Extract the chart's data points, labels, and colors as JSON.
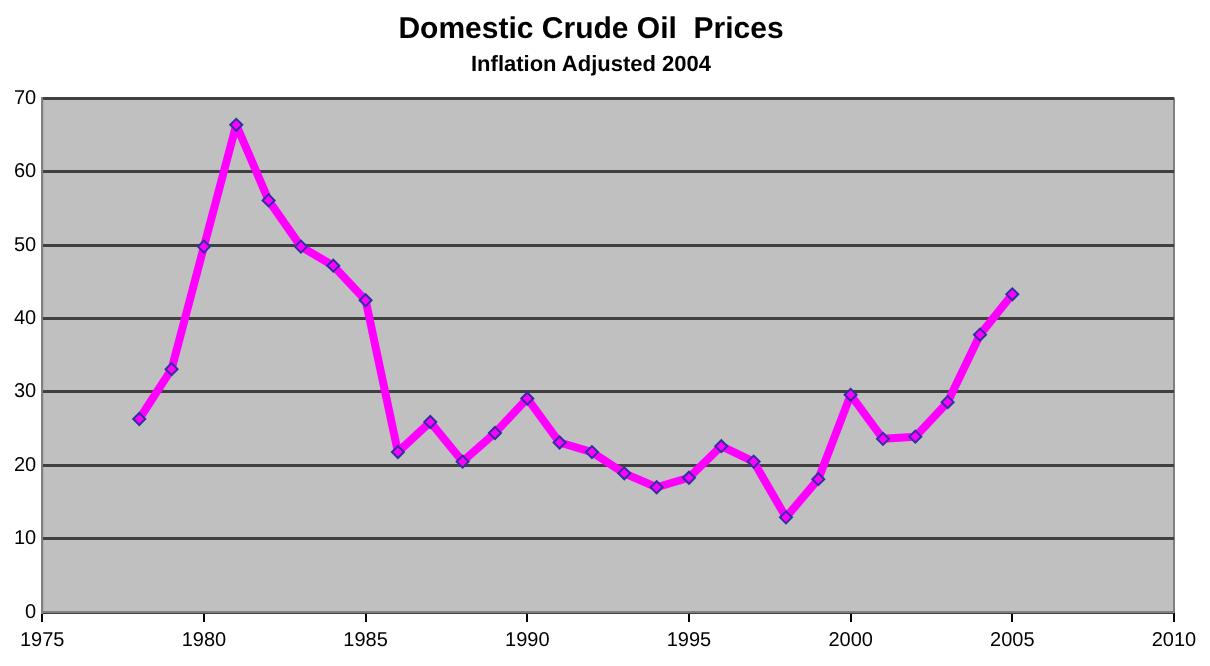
{
  "chart_data": {
    "type": "line",
    "title": "Domestic Crude Oil  Prices",
    "subtitle": "Inflation Adjusted 2004",
    "x": [
      1978,
      1979,
      1980,
      1981,
      1982,
      1983,
      1984,
      1985,
      1986,
      1987,
      1988,
      1989,
      1990,
      1991,
      1992,
      1993,
      1994,
      1995,
      1996,
      1997,
      1998,
      1999,
      2000,
      2001,
      2002,
      2003,
      2004,
      2005
    ],
    "series": [
      {
        "color": "#ff00ff",
        "values": [
          26.3,
          33.1,
          49.8,
          66.4,
          56.1,
          49.8,
          47.2,
          42.5,
          21.8,
          25.9,
          20.5,
          24.4,
          29.1,
          23.1,
          21.8,
          18.9,
          17.0,
          18.3,
          22.6,
          20.5,
          12.9,
          18.1,
          29.6,
          23.6,
          23.9,
          28.6,
          37.8,
          43.3
        ]
      }
    ],
    "xlim": [
      1975,
      2010
    ],
    "xticks": [
      1975,
      1980,
      1985,
      1990,
      1995,
      2000,
      2005,
      2010
    ],
    "ylim": [
      0,
      70
    ],
    "yticks": [
      0,
      10,
      20,
      30,
      40,
      50,
      60,
      70
    ],
    "grid": "y",
    "legend": false,
    "marker": "diamond",
    "line_style": "solid"
  }
}
